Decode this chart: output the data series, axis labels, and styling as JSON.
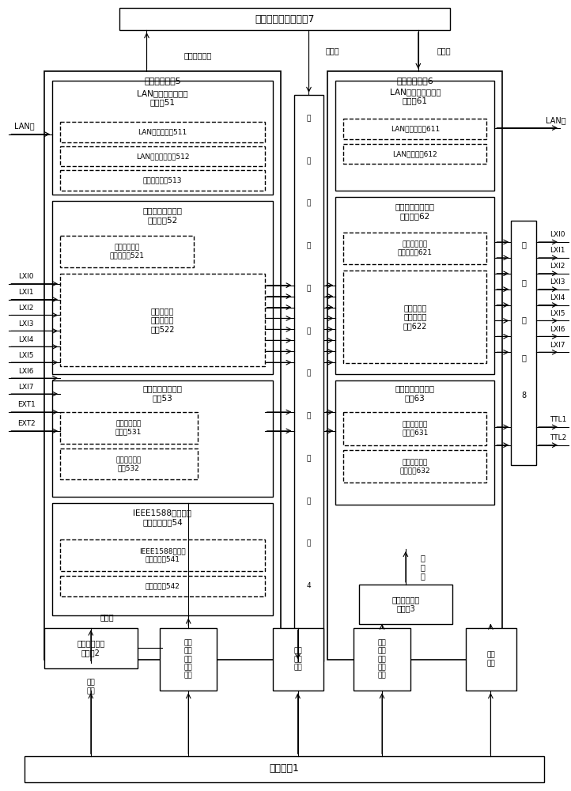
{
  "title_reg7": "触发输入状态寄存器7",
  "title_mod5": "触发输入模块5",
  "title_mod6": "触发输出模块6",
  "title_ctrl1": "控制单元1",
  "title_reg2": "触发输入使能\n寄存器2",
  "title_reg3": "触发输出使能\n寄存器3",
  "title_reg4_lines": [
    "触",
    "发",
    "输",
    "入",
    "输",
    "出",
    "选",
    "通",
    "寄",
    "存",
    "器",
    "4"
  ],
  "title_mod8_lines": [
    "延",
    "时",
    "模",
    "块",
    "8"
  ],
  "mod51_title": "LAN消息触发输入管\n理模块51",
  "mod511": "LAN消息寄存器511",
  "mod512": "LAN消息解析模块512",
  "mod513": "命令解析模块513",
  "mod52_title": "硬件总线触发输入\n管理模块52",
  "mod521": "硬件总线触发\n输入寄存器521",
  "mod522": "硬件总线触\n发输入检测\n模块522",
  "mod53_title": "外部触发输入管理\n模块53",
  "mod531": "外部触发输入\n寄存器531",
  "mod532": "外部触发输入\n检测532",
  "mod54_title": "IEEE1588时间触发\n输入管理模块54",
  "mod541": "IEEE1588时间触\n发管理模块541",
  "mod542": "时间寄存器542",
  "mod61_title": "LAN消息触发输出管\n理模块61",
  "mod611": "LAN消息寄存器611",
  "mod612": "LAN消息封装612",
  "mod62_title": "硬件总线触发输出\n管理模块62",
  "mod621": "硬件总线触发\n输出寄存器621",
  "mod622": "硬件总线触\n发输出产生\n模块622",
  "mod63_title": "外部触发输出管理\n模块63",
  "mod631": "外部触发输出\n寄存器631",
  "mod632": "外部触发输出\n产生模块632",
  "label_write_trig": "写入触发状态",
  "label_query1": "供查询",
  "label_query2": "供查询",
  "label_query_reg2": "供查询",
  "label_query_reg3": "供\n查\n询",
  "label_write_enable1": "写入\n使能",
  "label_write_reg1": "写入\n各管\n理模\n块寄\n存器",
  "label_write_sel": "写入\n选通\n关系",
  "label_write_reg2": "写入\n各管\n理模\n块寄\n存器",
  "label_write_enable2": "写入\n使能",
  "lan_in": "LAN包",
  "lan_out": "LAN包",
  "lxi_in": [
    "LXI0",
    "LXI1",
    "LXI2",
    "LXI3",
    "LXI4",
    "LXI5",
    "LXI6",
    "LXI7"
  ],
  "lxi_out": [
    "LXI0",
    "LXI1",
    "LXI2",
    "LXI3",
    "LXI4",
    "LXI5",
    "LXI6",
    "LXI7"
  ],
  "ext_in": [
    "EXT1",
    "EXT2"
  ],
  "ttl_out": [
    "TTL1",
    "TTL2"
  ],
  "bg_color": "#ffffff"
}
